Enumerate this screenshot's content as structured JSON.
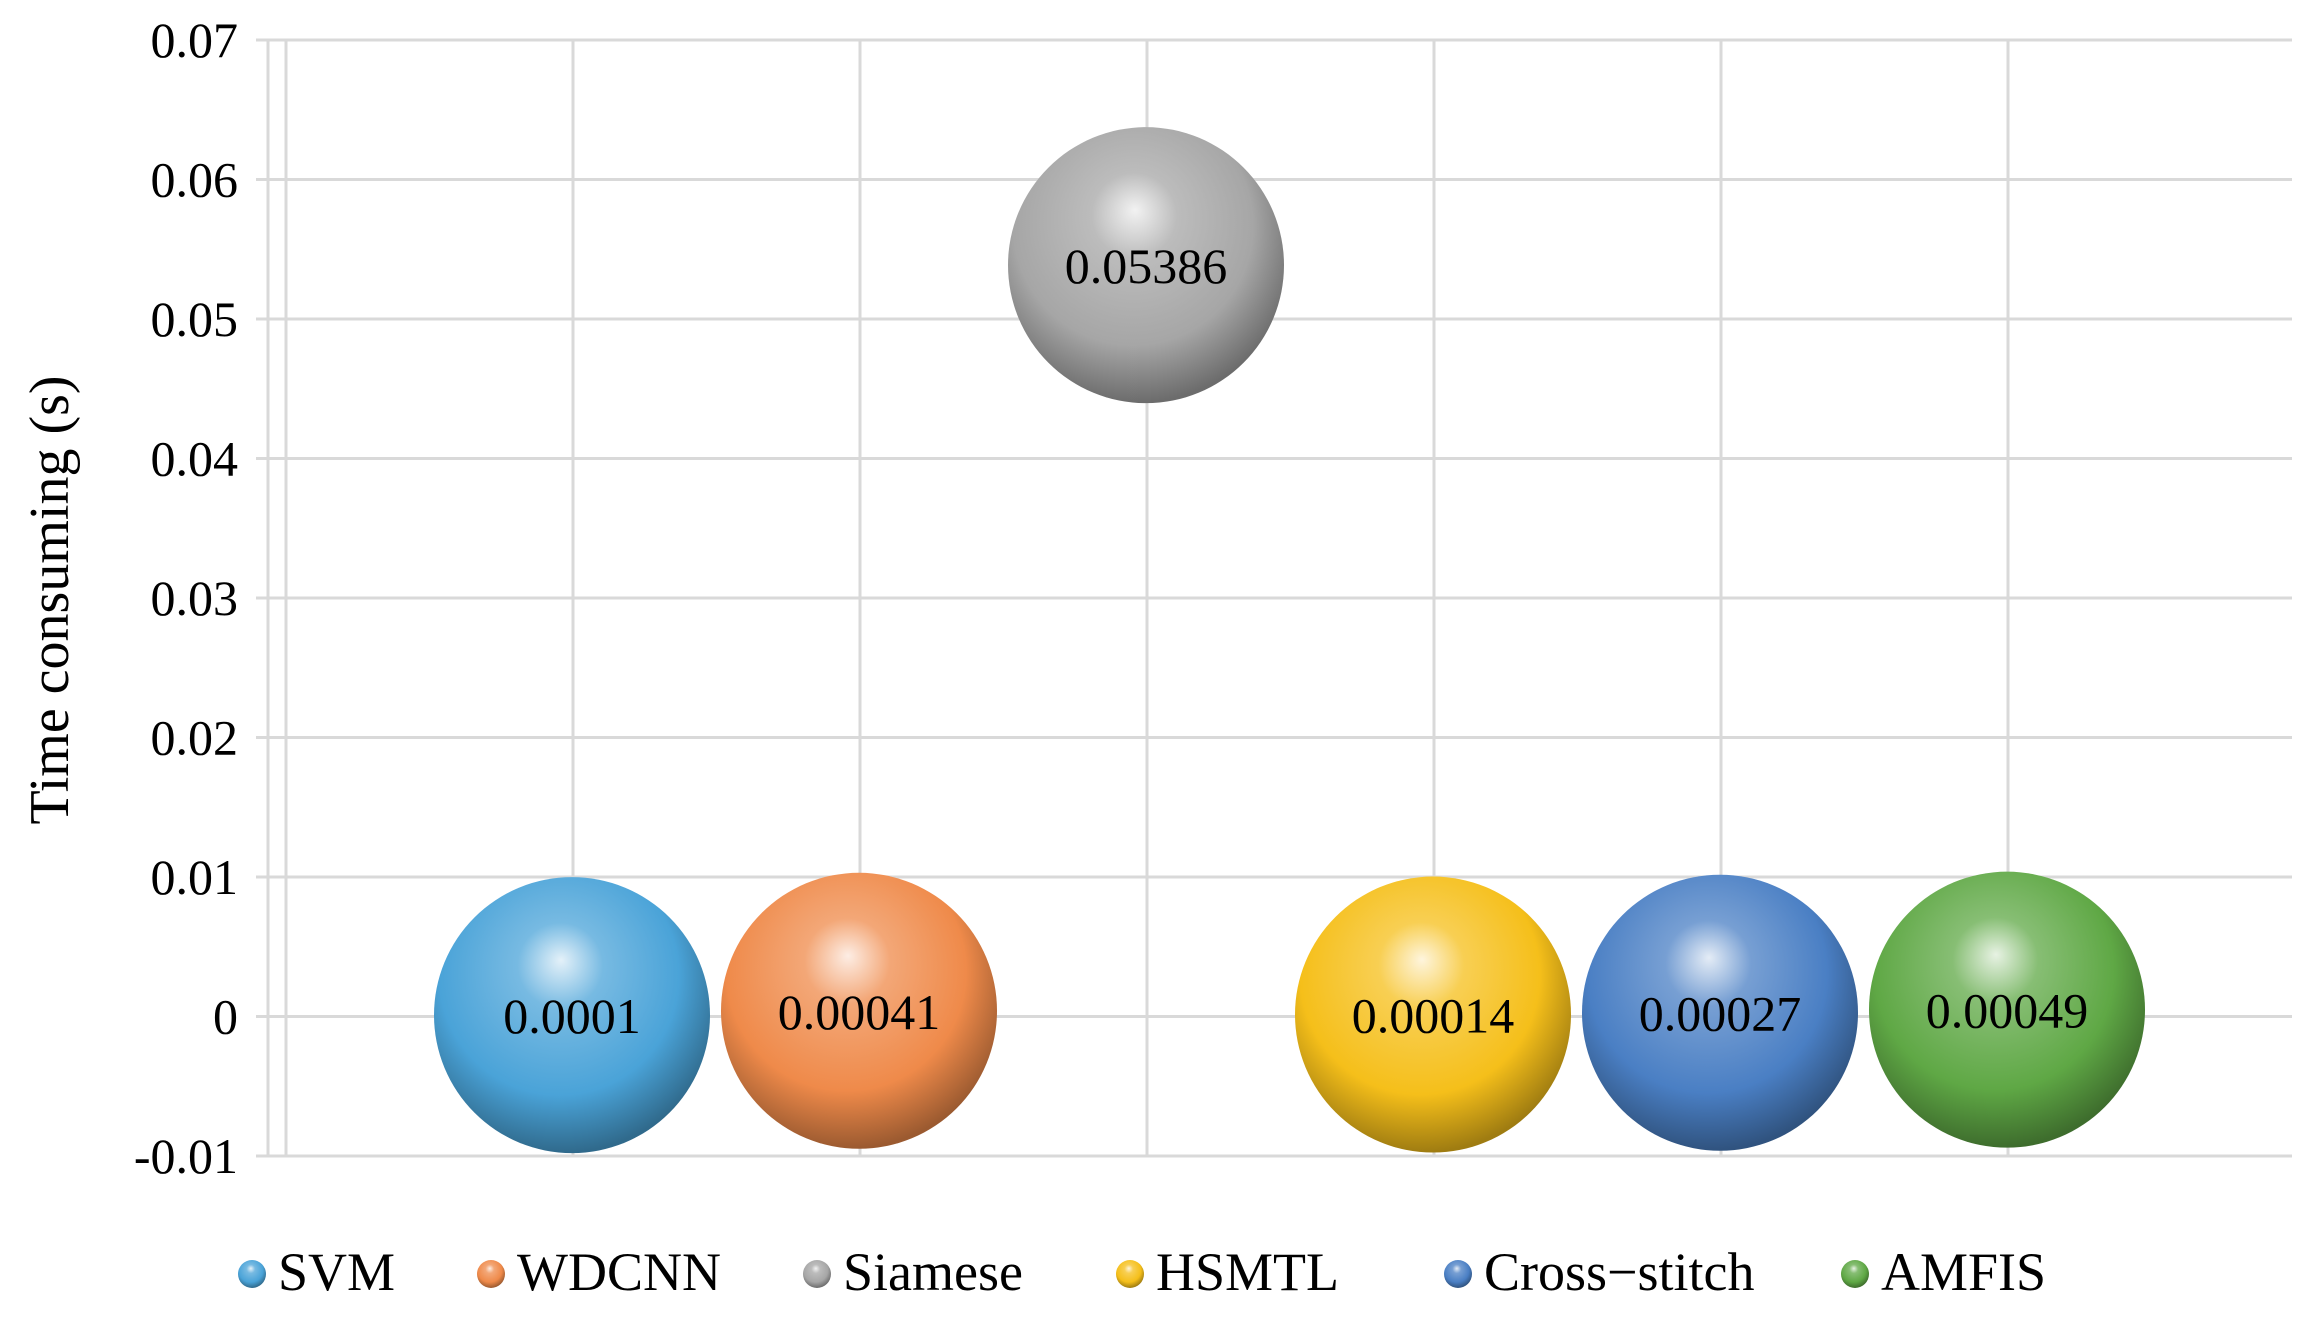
{
  "chart_data": {
    "type": "scatter",
    "ylabel": "Time consuming (s)",
    "xlabel": "",
    "ylim": [
      -0.01,
      0.07
    ],
    "yticks": [
      0.07,
      0.06,
      0.05,
      0.04,
      0.03,
      0.02,
      0.01,
      0,
      -0.01
    ],
    "ytick_labels": [
      "0.07",
      "0.06",
      "0.05",
      "0.04",
      "0.03",
      "0.02",
      "0.01",
      "0",
      "-0.01"
    ],
    "x_positions": [
      1,
      2,
      3,
      4,
      5,
      6
    ],
    "grid": true,
    "legend_position": "bottom",
    "series": [
      {
        "name": "SVM",
        "x": 1,
        "y": 0.0001,
        "label": "0.0001",
        "color": "#4aa3d8"
      },
      {
        "name": "WDCNN",
        "x": 2,
        "y": 0.00041,
        "label": "0.00041",
        "color": "#ef8a4a"
      },
      {
        "name": "Siamese",
        "x": 3,
        "y": 0.05386,
        "label": "0.05386",
        "color": "#a6a6a6"
      },
      {
        "name": "HSMTL",
        "x": 4,
        "y": 0.00014,
        "label": "0.00014",
        "color": "#f5bf1a"
      },
      {
        "name": "Cross−stitch",
        "x": 5,
        "y": 0.00027,
        "label": "0.00027",
        "color": "#4a7fc4"
      },
      {
        "name": "AMFIS",
        "x": 6,
        "y": 0.00049,
        "label": "0.00049",
        "color": "#5fa845"
      }
    ]
  }
}
